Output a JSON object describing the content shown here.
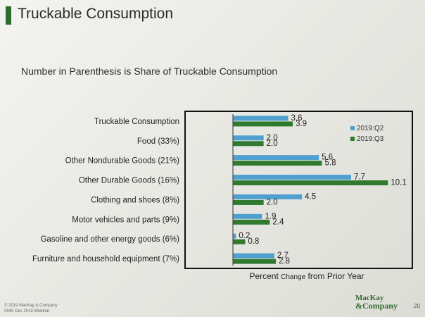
{
  "slide": {
    "title": "Truckable Consumption",
    "subtitle": "Number in Parenthesis is Share of Truckable Consumption",
    "xlabel_main1": "Percent",
    "xlabel_small": "Change",
    "xlabel_main2": "from Prior Year",
    "footer_line1": "© 2019 MacKay & Company",
    "footer_line2": "0945 Dec 2019 Webinar",
    "logo_line1": "MacKay",
    "logo_line2": "&Company",
    "page_number": "20"
  },
  "colors": {
    "q2": "#4f9fcf",
    "q3": "#2f7a2f",
    "title_accent": "#2f6b2f"
  },
  "chart_data": {
    "type": "bar",
    "orientation": "horizontal",
    "xlabel": "Percent Change from Prior Year",
    "xlim": [
      0,
      11
    ],
    "grid": false,
    "legend_position": "top-right",
    "categories": [
      "Truckable Consumption",
      "Food (33%)",
      "Other Nondurable Goods (21%)",
      "Other Durable Goods (16%)",
      "Clothing and shoes (8%)",
      "Motor vehicles and parts (9%)",
      "Gasoline and other energy goods  (6%)",
      "Furniture and household equipment (7%)"
    ],
    "series": [
      {
        "name": "2019:Q2",
        "values": [
          3.6,
          2.0,
          5.6,
          7.7,
          4.5,
          1.9,
          0.2,
          2.7
        ],
        "labels": [
          "3.6",
          "2.0",
          "5.6",
          "7.7",
          "4.5",
          "1.9",
          "0.2",
          "2.7"
        ]
      },
      {
        "name": "2019:Q3",
        "values": [
          3.9,
          2.0,
          5.8,
          10.1,
          2.0,
          2.4,
          0.8,
          2.8
        ],
        "labels": [
          "3.9",
          "2.0",
          "5.8",
          "10.1",
          "2.0",
          "2.4",
          "0.8",
          "2.8"
        ]
      }
    ]
  }
}
